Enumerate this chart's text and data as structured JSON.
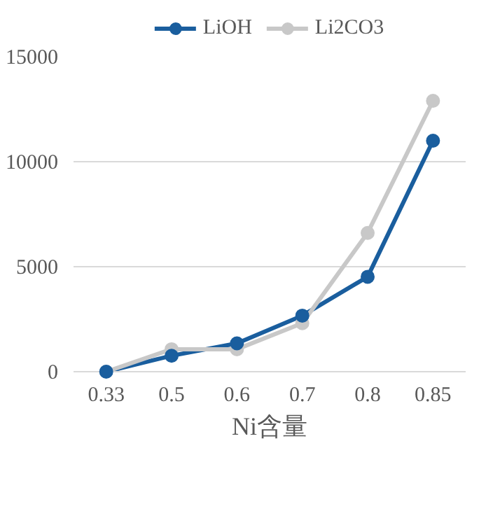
{
  "chart_data": {
    "type": "line",
    "xlabel": "Ni含量",
    "categories": [
      "0.33",
      "0.5",
      "0.6",
      "0.7",
      "0.8",
      "0.85"
    ],
    "series": [
      {
        "name": "LiOH",
        "color": "#1a5e9e",
        "values": [
          0,
          760,
          1350,
          2670,
          4520,
          11000
        ]
      },
      {
        "name": "Li2CO3",
        "color": "#c8c8c8",
        "values": [
          0,
          1070,
          1070,
          2310,
          6610,
          12900
        ]
      }
    ],
    "ylim": [
      0,
      15000
    ],
    "yticks": [
      0,
      5000,
      10000,
      15000
    ],
    "grid": "y",
    "legend": "top",
    "marker": "circle",
    "line_style": "solid"
  }
}
